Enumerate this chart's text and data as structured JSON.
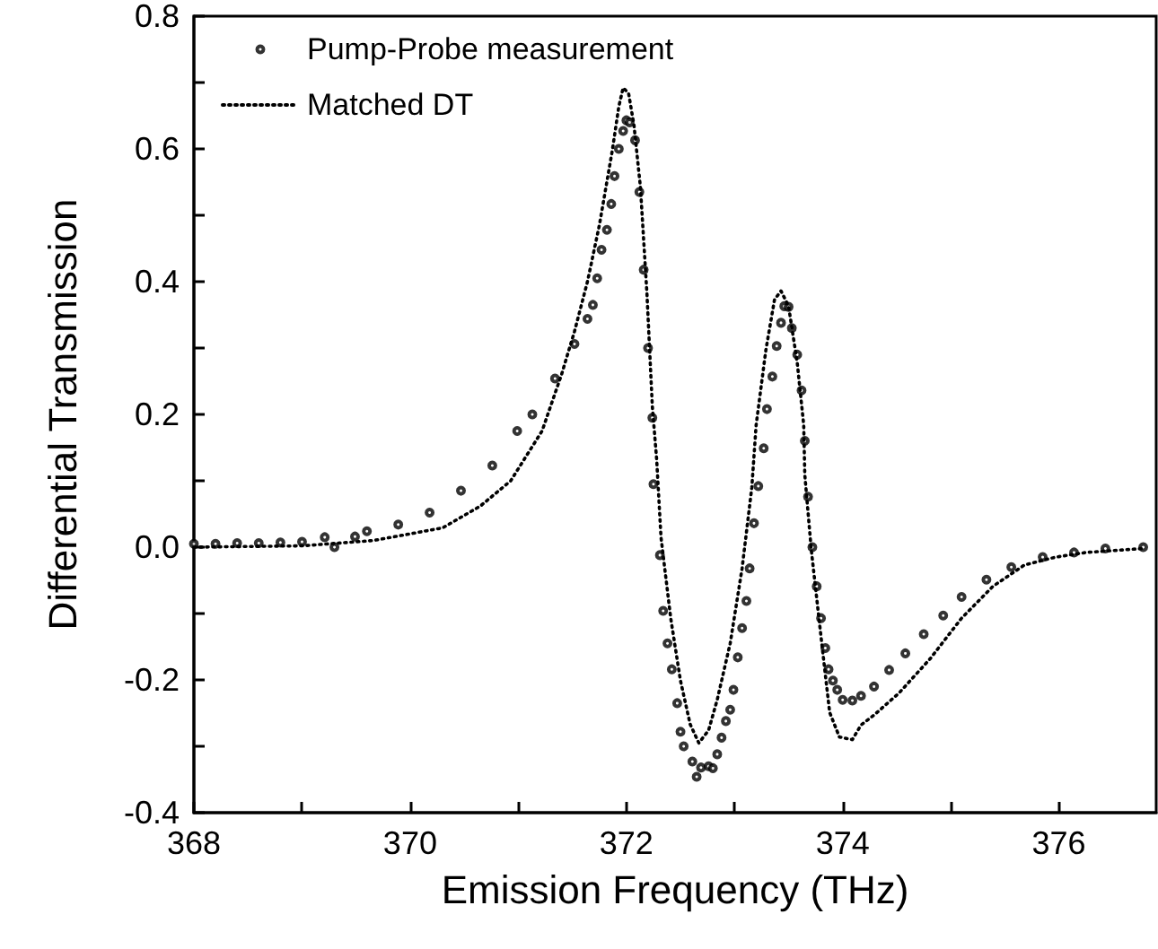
{
  "chart_data": {
    "type": "scatter",
    "xlabel": "Emission Frequency (THz)",
    "ylabel": "Differential Transmission",
    "xlim": [
      368,
      376.9
    ],
    "ylim": [
      -0.4,
      0.8
    ],
    "xticks": [
      368,
      {
        "value": 369,
        "label": null
      },
      370,
      {
        "value": 371,
        "label": null
      },
      372,
      {
        "value": 373,
        "label": null
      },
      374,
      {
        "value": 375,
        "label": null
      },
      376
    ],
    "yticks": [
      -0.4,
      {
        "value": -0.3,
        "label": null
      },
      -0.2,
      {
        "value": -0.1,
        "label": null
      },
      {
        "value": 0,
        "label": "0.0"
      },
      {
        "value": 0.1,
        "label": null
      },
      0.2,
      {
        "value": 0.3,
        "label": null
      },
      0.4,
      {
        "value": 0.5,
        "label": null
      },
      0.6,
      {
        "value": 0.7,
        "label": null
      },
      0.8
    ],
    "grid": false,
    "legend": "top left",
    "series": [
      {
        "name": "Pump-Probe measurement",
        "marker": "circle",
        "color": "#000000",
        "x": [
          368.0,
          368.2,
          368.4,
          368.6,
          368.8,
          369.0,
          369.21,
          369.3,
          369.49,
          369.6,
          369.89,
          370.18,
          370.47,
          370.76,
          370.99,
          371.13,
          371.34,
          371.52,
          371.64,
          371.69,
          371.73,
          371.77,
          371.82,
          371.86,
          371.89,
          371.93,
          371.97,
          372.0,
          372.03,
          372.08,
          372.12,
          372.16,
          372.2,
          372.24,
          372.25,
          372.31,
          372.34,
          372.38,
          372.42,
          372.47,
          372.5,
          372.53,
          372.61,
          372.65,
          372.69,
          372.76,
          372.8,
          372.84,
          372.88,
          372.92,
          372.96,
          372.99,
          373.03,
          373.07,
          373.11,
          373.14,
          373.18,
          373.22,
          373.27,
          373.3,
          373.35,
          373.39,
          373.43,
          373.46,
          373.5,
          373.53,
          373.58,
          373.62,
          373.65,
          373.68,
          373.72,
          373.76,
          373.8,
          373.84,
          373.87,
          373.91,
          373.95,
          374.0,
          374.09,
          374.17,
          374.29,
          374.43,
          374.58,
          374.75,
          374.93,
          375.1,
          375.33,
          375.56,
          375.85,
          376.14,
          376.43,
          376.78
        ],
        "values": [
          0.005,
          0.005,
          0.006,
          0.006,
          0.007,
          0.008,
          0.015,
          0.0,
          0.016,
          0.024,
          0.034,
          0.052,
          0.085,
          0.123,
          0.175,
          0.2,
          0.254,
          0.306,
          0.344,
          0.365,
          0.405,
          0.448,
          0.478,
          0.517,
          0.559,
          0.6,
          0.627,
          0.643,
          0.64,
          0.613,
          0.535,
          0.418,
          0.3,
          0.195,
          0.095,
          -0.012,
          -0.096,
          -0.145,
          -0.184,
          -0.235,
          -0.278,
          -0.3,
          -0.323,
          -0.346,
          -0.332,
          -0.33,
          -0.333,
          -0.312,
          -0.287,
          -0.262,
          -0.245,
          -0.215,
          -0.166,
          -0.122,
          -0.081,
          -0.032,
          0.036,
          0.092,
          0.149,
          0.208,
          0.257,
          0.303,
          0.338,
          0.363,
          0.362,
          0.33,
          0.29,
          0.236,
          0.16,
          0.076,
          0.0,
          -0.059,
          -0.107,
          -0.152,
          -0.184,
          -0.201,
          -0.215,
          -0.23,
          -0.231,
          -0.224,
          -0.21,
          -0.185,
          -0.16,
          -0.131,
          -0.103,
          -0.075,
          -0.049,
          -0.03,
          -0.015,
          -0.008,
          -0.002,
          0.0
        ]
      },
      {
        "name": "Matched DT",
        "type": "line",
        "marker": "none",
        "line_style": "dotted",
        "color": "#000000",
        "x": [
          368.0,
          369.0,
          369.66,
          370.3,
          370.65,
          370.93,
          371.22,
          371.4,
          371.52,
          371.64,
          371.75,
          371.87,
          371.93,
          371.97,
          372.02,
          372.07,
          372.13,
          372.19,
          372.24,
          372.28,
          372.32,
          372.41,
          372.5,
          372.59,
          372.67,
          372.76,
          372.84,
          372.96,
          373.07,
          373.16,
          373.2,
          373.29,
          373.37,
          373.43,
          373.5,
          373.58,
          373.64,
          373.65,
          373.71,
          373.8,
          373.88,
          373.97,
          374.09,
          374.17,
          374.29,
          374.52,
          374.81,
          375.1,
          375.39,
          375.68,
          375.97,
          376.25,
          376.78
        ],
        "values": [
          0.0,
          0.002,
          0.01,
          0.029,
          0.062,
          0.1,
          0.175,
          0.26,
          0.325,
          0.4,
          0.485,
          0.598,
          0.664,
          0.692,
          0.684,
          0.636,
          0.542,
          0.382,
          0.212,
          0.132,
          0.015,
          -0.107,
          -0.201,
          -0.267,
          -0.295,
          -0.276,
          -0.23,
          -0.145,
          -0.032,
          0.09,
          0.184,
          0.297,
          0.373,
          0.386,
          0.363,
          0.278,
          0.184,
          0.109,
          -0.004,
          -0.135,
          -0.249,
          -0.286,
          -0.29,
          -0.268,
          -0.253,
          -0.22,
          -0.168,
          -0.107,
          -0.059,
          -0.027,
          -0.015,
          -0.008,
          -0.002
        ]
      }
    ]
  }
}
